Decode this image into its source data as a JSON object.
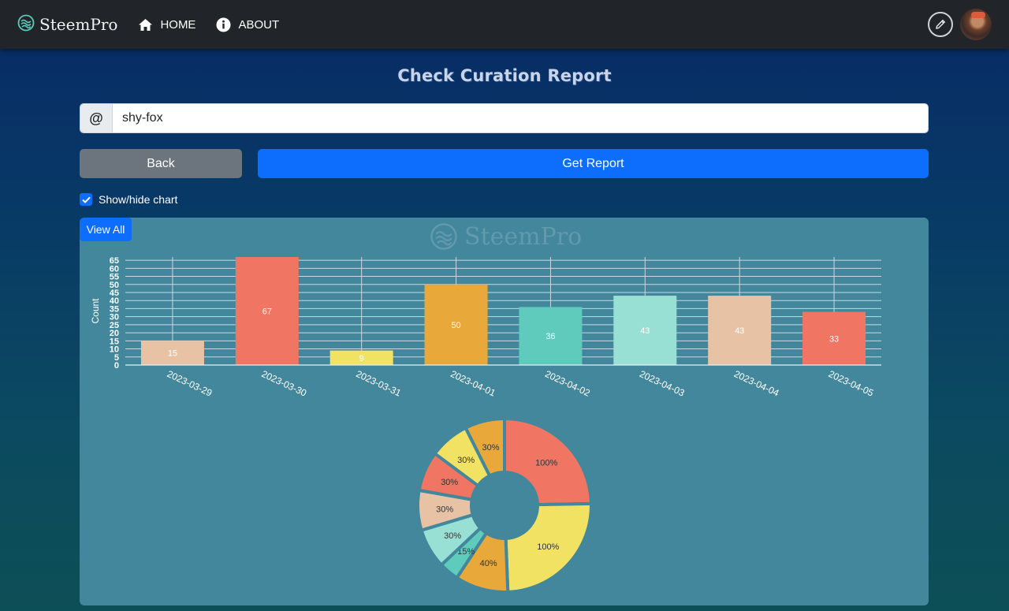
{
  "nav": {
    "brand": "SteemPro",
    "home_label": "HOME",
    "about_label": "ABOUT"
  },
  "page": {
    "title": "Check Curation Report"
  },
  "search": {
    "prefix": "@",
    "value": "shy-fox"
  },
  "buttons": {
    "back": "Back",
    "get_report": "Get Report"
  },
  "toggle": {
    "label": "Show/hide chart",
    "checked": true
  },
  "panel": {
    "view_all": "View All",
    "watermark": "SteemPro"
  },
  "colors": {
    "navbar": "#212529",
    "primary": "#0d6efd",
    "secondary": "#6c757d",
    "panel": "#42879c",
    "peach": "#e8c2a4",
    "salmon": "#f07563",
    "yellow": "#f2e263",
    "orange": "#e8a83a",
    "teal": "#5ecbbd",
    "mint": "#98e0d4"
  },
  "chart_data": [
    {
      "type": "bar",
      "ylabel": "Count",
      "categories": [
        "2023-03-29",
        "2023-03-30",
        "2023-03-31",
        "2023-04-01",
        "2023-04-02",
        "2023-04-03",
        "2023-04-04",
        "2023-04-05"
      ],
      "values": [
        15,
        67,
        9,
        50,
        36,
        43,
        43,
        33
      ],
      "colors": [
        "#e8c2a4",
        "#f07563",
        "#f2e263",
        "#e8a83a",
        "#5ecbbd",
        "#98e0d4",
        "#e8c2a4",
        "#f07563"
      ],
      "ylim": [
        0,
        67
      ],
      "yticks": [
        0,
        5,
        10,
        15,
        20,
        25,
        30,
        35,
        40,
        45,
        50,
        55,
        60,
        65
      ],
      "grid": true
    },
    {
      "type": "pie",
      "variant": "doughnut",
      "slices": [
        {
          "label": "100%",
          "value": 100,
          "color": "#f07563"
        },
        {
          "label": "100%",
          "value": 100,
          "color": "#f2e263"
        },
        {
          "label": "40%",
          "value": 40,
          "color": "#e8a83a"
        },
        {
          "label": "15%",
          "value": 15,
          "color": "#5ecbbd"
        },
        {
          "label": "30%",
          "value": 30,
          "color": "#98e0d4"
        },
        {
          "label": "30%",
          "value": 30,
          "color": "#e8c2a4"
        },
        {
          "label": "30%",
          "value": 30,
          "color": "#f07563"
        },
        {
          "label": "30%",
          "value": 30,
          "color": "#f2e263"
        },
        {
          "label": "30%",
          "value": 30,
          "color": "#e8a83a"
        }
      ]
    }
  ]
}
